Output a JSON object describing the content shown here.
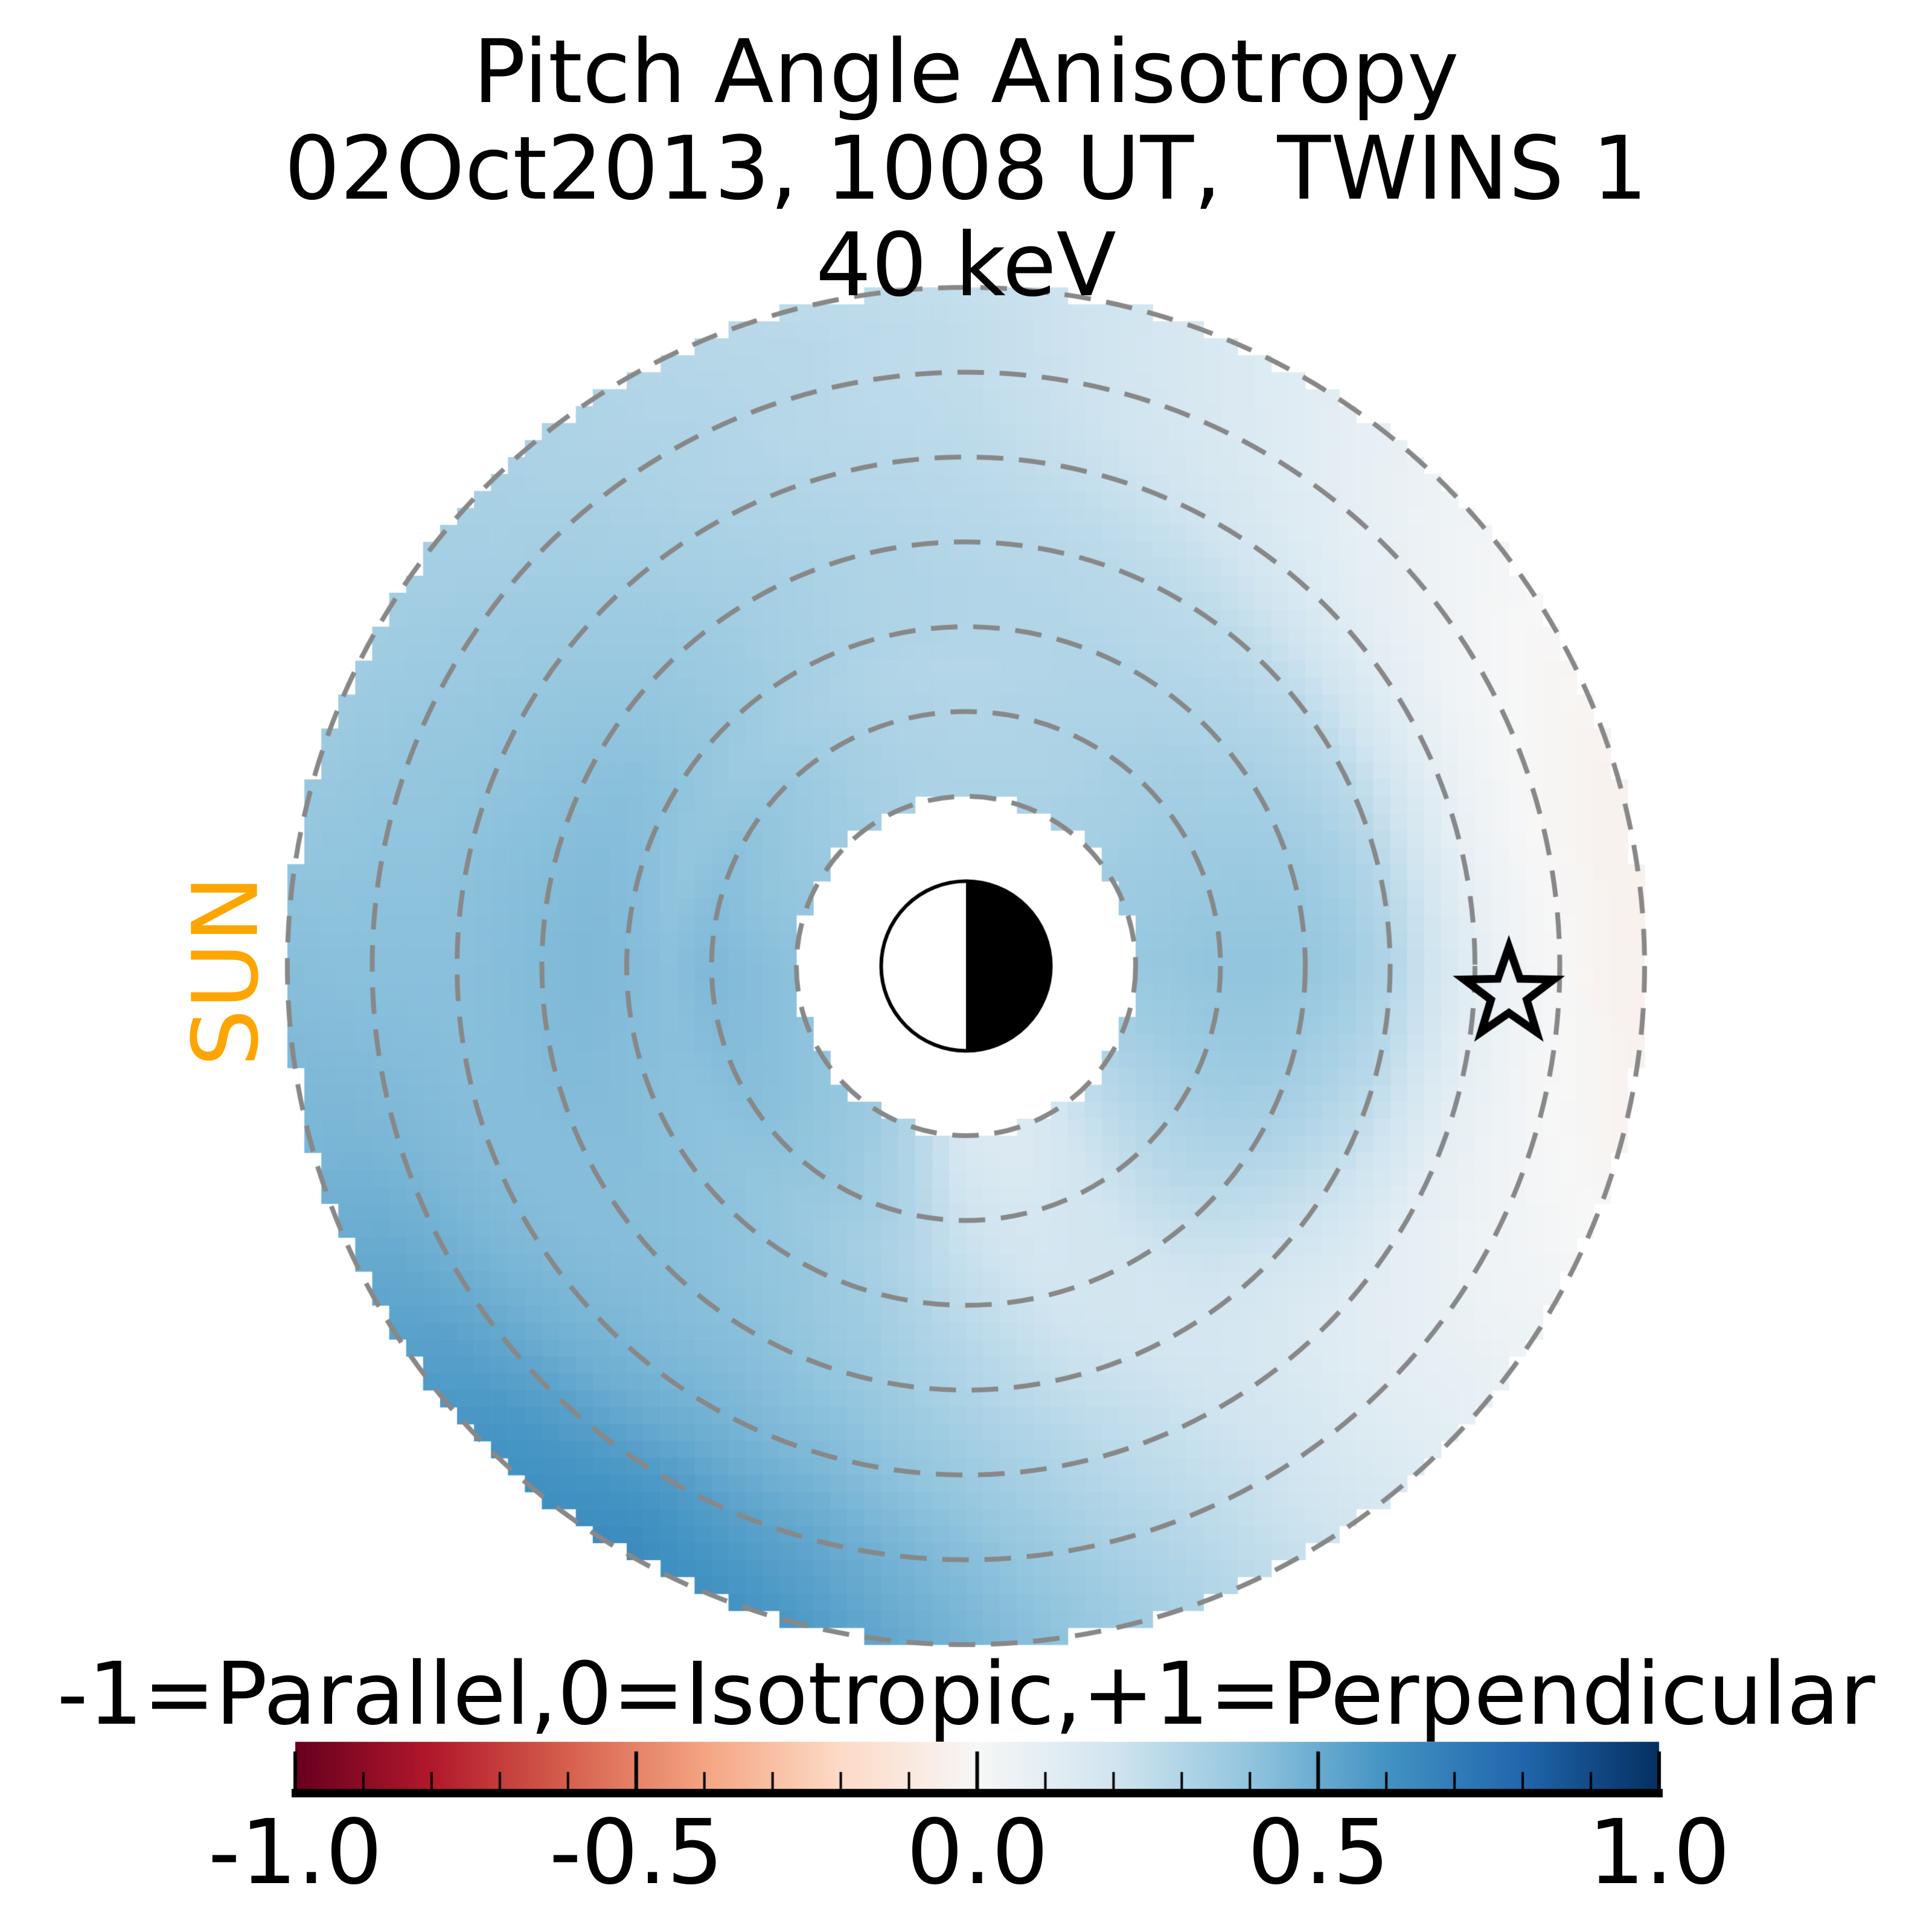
{
  "figure": {
    "title_line1": "Pitch Angle Anisotropy",
    "title_line2": "02Oct2013, 1008 UT,  TWINS 1",
    "title_line3": "40 keV",
    "sun_label": "SUN"
  },
  "colorbar": {
    "label": "-1=Parallel,0=Isotropic,+1=Perpendicular",
    "tick_labels": [
      "-1.0",
      "-0.5",
      "0.0",
      "0.5",
      "1.0"
    ],
    "tick_values": [
      -1.0,
      -0.5,
      0.0,
      0.5,
      1.0
    ],
    "minor_tick_step": 0.1,
    "range": [
      -1,
      1
    ]
  },
  "colors": {
    "background": "#ffffff",
    "text": "#000000",
    "sun_label": "#ffa500",
    "dashed_ring": "#888888",
    "earth_day_side": "#ffffff",
    "earth_night_side": "#000000",
    "earth_outline": "#000000",
    "star_outline": "#000000",
    "colormap_name": "RdBu",
    "colormap_stops": [
      "#67001f",
      "#b2182b",
      "#d6604d",
      "#f4a582",
      "#fddbc7",
      "#f7f7f7",
      "#d1e5f0",
      "#92c5de",
      "#4393c3",
      "#2166ac",
      "#053061"
    ]
  },
  "chart_data": {
    "type": "heatmap",
    "projection": "polar",
    "value_name": "pitch angle anisotropy (-1=parallel, 0=isotropic, +1=perpendicular)",
    "units": {
      "radius": "Earth radii",
      "azimuth": "degrees, 0 = right (star side), counterclockwise",
      "value": "anisotropy index"
    },
    "radius_range_re": [
      2,
      8
    ],
    "dashed_rings_re": [
      2,
      3,
      4,
      5,
      6,
      7,
      8
    ],
    "earth_symbol": {
      "center_re": [
        0,
        0
      ],
      "radius_re": 1,
      "day_side": "left",
      "night_side": "right"
    },
    "star_marker_re": {
      "x": 6.4,
      "y": -0.33
    },
    "sun_direction": "left",
    "radii_re": [
      2,
      2.5,
      3,
      3.5,
      4,
      4.5,
      5,
      5.5,
      6,
      6.5,
      7,
      7.5,
      8
    ],
    "azimuths_deg": [
      0,
      15,
      30,
      45,
      60,
      75,
      90,
      105,
      120,
      135,
      150,
      165,
      180,
      195,
      210,
      225,
      240,
      255,
      270,
      285,
      300,
      315,
      330,
      345
    ],
    "values": [
      [
        0.38,
        0.37,
        0.36,
        0.34,
        0.33,
        0.32,
        0.32,
        0.32,
        0.34,
        0.36,
        0.38,
        0.4,
        0.41,
        0.41,
        0.4,
        0.39,
        0.36,
        0.28,
        0.16,
        0.14,
        0.18,
        0.26,
        0.32,
        0.36
      ],
      [
        0.39,
        0.38,
        0.36,
        0.34,
        0.32,
        0.31,
        0.31,
        0.32,
        0.34,
        0.37,
        0.39,
        0.41,
        0.43,
        0.43,
        0.42,
        0.4,
        0.37,
        0.3,
        0.18,
        0.15,
        0.19,
        0.27,
        0.33,
        0.37
      ],
      [
        0.4,
        0.38,
        0.36,
        0.34,
        0.32,
        0.31,
        0.3,
        0.31,
        0.34,
        0.38,
        0.41,
        0.43,
        0.45,
        0.44,
        0.43,
        0.41,
        0.38,
        0.32,
        0.21,
        0.17,
        0.2,
        0.28,
        0.34,
        0.38
      ],
      [
        0.4,
        0.38,
        0.35,
        0.33,
        0.31,
        0.3,
        0.29,
        0.3,
        0.33,
        0.36,
        0.39,
        0.4,
        0.42,
        0.42,
        0.41,
        0.4,
        0.37,
        0.32,
        0.23,
        0.18,
        0.2,
        0.28,
        0.34,
        0.38
      ],
      [
        0.39,
        0.37,
        0.34,
        0.31,
        0.3,
        0.3,
        0.3,
        0.31,
        0.34,
        0.38,
        0.41,
        0.43,
        0.44,
        0.43,
        0.42,
        0.41,
        0.39,
        0.34,
        0.26,
        0.19,
        0.19,
        0.26,
        0.32,
        0.36
      ],
      [
        0.36,
        0.34,
        0.31,
        0.29,
        0.28,
        0.29,
        0.3,
        0.31,
        0.34,
        0.38,
        0.42,
        0.44,
        0.45,
        0.44,
        0.43,
        0.42,
        0.4,
        0.36,
        0.29,
        0.21,
        0.18,
        0.23,
        0.28,
        0.32
      ],
      [
        0.3,
        0.28,
        0.27,
        0.26,
        0.27,
        0.28,
        0.29,
        0.31,
        0.34,
        0.38,
        0.41,
        0.43,
        0.44,
        0.44,
        0.43,
        0.43,
        0.42,
        0.38,
        0.31,
        0.23,
        0.18,
        0.19,
        0.23,
        0.27
      ],
      [
        0.2,
        0.18,
        0.18,
        0.2,
        0.23,
        0.26,
        0.28,
        0.3,
        0.33,
        0.37,
        0.4,
        0.42,
        0.43,
        0.43,
        0.43,
        0.44,
        0.44,
        0.41,
        0.34,
        0.26,
        0.19,
        0.16,
        0.17,
        0.18
      ],
      [
        0.1,
        0.08,
        0.1,
        0.14,
        0.19,
        0.23,
        0.27,
        0.29,
        0.32,
        0.36,
        0.39,
        0.41,
        0.42,
        0.43,
        0.44,
        0.46,
        0.47,
        0.44,
        0.37,
        0.28,
        0.2,
        0.13,
        0.1,
        0.09
      ],
      [
        0.04,
        0.03,
        0.05,
        0.1,
        0.16,
        0.21,
        0.26,
        0.28,
        0.31,
        0.35,
        0.38,
        0.4,
        0.42,
        0.44,
        0.46,
        0.49,
        0.51,
        0.48,
        0.4,
        0.3,
        0.21,
        0.12,
        0.07,
        0.05
      ],
      [
        0.0,
        -0.01,
        0.02,
        0.08,
        0.14,
        0.2,
        0.25,
        0.28,
        0.31,
        0.34,
        0.37,
        0.4,
        0.42,
        0.45,
        0.49,
        0.54,
        0.57,
        0.52,
        0.43,
        0.32,
        0.22,
        0.11,
        0.05,
        0.01
      ],
      [
        -0.03,
        -0.03,
        0.0,
        0.06,
        0.13,
        0.19,
        0.25,
        0.28,
        0.3,
        0.33,
        0.36,
        0.39,
        0.42,
        0.46,
        0.52,
        0.58,
        0.61,
        0.55,
        0.45,
        0.34,
        0.22,
        0.11,
        0.04,
        -0.01
      ],
      [
        -0.05,
        -0.04,
        -0.01,
        0.05,
        0.12,
        0.19,
        0.24,
        0.27,
        0.3,
        0.33,
        0.35,
        0.38,
        0.43,
        0.46,
        0.53,
        0.6,
        0.64,
        0.58,
        0.47,
        0.35,
        0.23,
        0.11,
        0.03,
        -0.03
      ]
    ]
  }
}
